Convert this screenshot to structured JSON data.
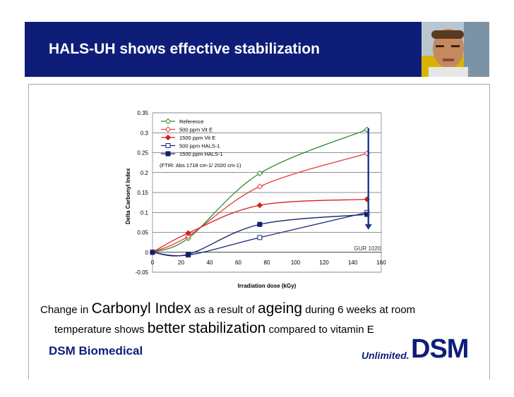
{
  "slide": {
    "title": "HALS-UH shows effective stabilization",
    "caption_line1": [
      {
        "text": "Change in ",
        "big": false
      },
      {
        "text": "Carbonyl Index",
        "big": true
      },
      {
        "text": " as a result of ",
        "big": false
      },
      {
        "text": "ageing",
        "big": true
      },
      {
        "text": " during 6 weeks at room",
        "big": false
      }
    ],
    "caption_line2": [
      {
        "text": "temperature shows ",
        "big": false
      },
      {
        "text": "better",
        "big": true
      },
      {
        "text": " ",
        "big": false
      },
      {
        "text": "stabilization",
        "big": true
      },
      {
        "text": " compared to vitamin E",
        "big": false
      }
    ],
    "footer_left": "DSM Biomedical",
    "tagline": "Unlimited.",
    "logo": "DSM"
  },
  "colors": {
    "header": "#0e1e78",
    "reference": "#2e8b2e",
    "vit_e_500": "#e23b3b",
    "vit_e_1500": "#d42020",
    "hals_500": "#1a237e",
    "hals_1500": "#10206a",
    "arrow": "#1a3a8a"
  },
  "chart_data": {
    "type": "line",
    "title": "",
    "xlabel": "Irradiation dose (kGy)",
    "ylabel": "Delta Carbonyl Index",
    "xlim": [
      0,
      160
    ],
    "ylim": [
      -0.05,
      0.35
    ],
    "xticks": [
      0,
      20,
      40,
      60,
      80,
      100,
      120,
      140,
      160
    ],
    "yticks": [
      -0.05,
      0,
      0.05,
      0.1,
      0.15,
      0.2,
      0.25,
      0.3,
      0.35
    ],
    "ytick_labels": [
      "-0.05",
      "0",
      "0.05",
      "0.1",
      "0.15",
      "0.2",
      "0.25",
      "0.3",
      "0.35"
    ],
    "grid": true,
    "annotation": "(FTIR: Abs 1718 cm-1/ 2020 cm-1)",
    "point_label": "GUR 1020",
    "series": [
      {
        "name": "Reference",
        "x": [
          0,
          25,
          75,
          150
        ],
        "y": [
          0,
          0.035,
          0.198,
          0.308
        ],
        "marker": "open-diamond",
        "color_key": "reference"
      },
      {
        "name": "500 ppm Vit E",
        "x": [
          0,
          25,
          75,
          150
        ],
        "y": [
          0,
          0.04,
          0.165,
          0.248
        ],
        "marker": "open-diamond",
        "color_key": "vit_e_500"
      },
      {
        "name": "1500 ppm Vit E",
        "x": [
          0,
          25,
          75,
          150
        ],
        "y": [
          0,
          0.048,
          0.118,
          0.133
        ],
        "marker": "filled-diamond",
        "color_key": "vit_e_1500"
      },
      {
        "name": "500 ppm HALS-1",
        "x": [
          0,
          25,
          75,
          150
        ],
        "y": [
          0,
          -0.007,
          0.037,
          0.1
        ],
        "marker": "open-square",
        "color_key": "hals_500"
      },
      {
        "name": "1500 ppm HALS-1",
        "x": [
          0,
          25,
          75,
          150
        ],
        "y": [
          0,
          -0.005,
          0.07,
          0.095
        ],
        "marker": "filled-square",
        "color_key": "hals_1500"
      }
    ]
  }
}
